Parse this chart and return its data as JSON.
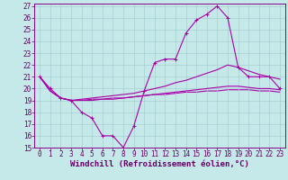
{
  "xlabel": "Windchill (Refroidissement éolien,°C)",
  "bg_color": "#c5e8e8",
  "grid_color": "#a8d0d0",
  "line_color": "#aa00aa",
  "spine_color": "#880088",
  "xlim": [
    -0.5,
    23.5
  ],
  "ylim": [
    15,
    27.2
  ],
  "yticks": [
    15,
    16,
    17,
    18,
    19,
    20,
    21,
    22,
    23,
    24,
    25,
    26,
    27
  ],
  "xticks": [
    0,
    1,
    2,
    3,
    4,
    5,
    6,
    7,
    8,
    9,
    10,
    11,
    12,
    13,
    14,
    15,
    16,
    17,
    18,
    19,
    20,
    21,
    22,
    23
  ],
  "series1_y": [
    21,
    20,
    19.2,
    19,
    18,
    17.5,
    16,
    16,
    15,
    16.8,
    19.8,
    22.2,
    22.5,
    22.5,
    24.7,
    25.8,
    26.3,
    27,
    26,
    21.8,
    21,
    21,
    21,
    20
  ],
  "series2_y": [
    21,
    19.8,
    19.2,
    19.0,
    19.1,
    19.2,
    19.3,
    19.4,
    19.5,
    19.6,
    19.8,
    20.0,
    20.2,
    20.5,
    20.7,
    21.0,
    21.3,
    21.6,
    22.0,
    21.8,
    21.5,
    21.2,
    21.0,
    20.8
  ],
  "series3_y": [
    21,
    19.8,
    19.2,
    19.0,
    19.0,
    19.0,
    19.1,
    19.1,
    19.2,
    19.3,
    19.4,
    19.5,
    19.6,
    19.7,
    19.8,
    19.9,
    20.0,
    20.1,
    20.2,
    20.2,
    20.1,
    20.0,
    20.0,
    19.9
  ],
  "series4_y": [
    21,
    19.8,
    19.2,
    19.0,
    19.0,
    19.1,
    19.1,
    19.2,
    19.2,
    19.3,
    19.4,
    19.5,
    19.5,
    19.6,
    19.7,
    19.7,
    19.8,
    19.8,
    19.9,
    19.9,
    19.9,
    19.8,
    19.8,
    19.7
  ],
  "font_color": "#660066",
  "tick_fontsize": 5.5,
  "xlabel_fontsize": 6.5
}
